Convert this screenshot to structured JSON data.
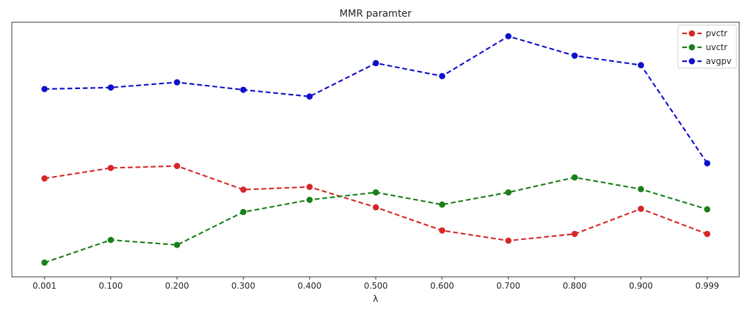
{
  "chart_data": {
    "type": "line",
    "title": "MMR paramter",
    "xlabel": "λ",
    "ylabel": "",
    "categories": [
      "0.001",
      "0.100",
      "0.200",
      "0.300",
      "0.400",
      "0.500",
      "0.600",
      "0.700",
      "0.800",
      "0.900",
      "0.999"
    ],
    "ylim": [
      0,
      100
    ],
    "show_y_ticks": false,
    "legend": {
      "placement": "top-right"
    },
    "series": [
      {
        "name": "pvctr",
        "color": "#d62728",
        "line_style": "dashed",
        "marker": "circle",
        "values": [
          38.4,
          42.6,
          43.4,
          33.9,
          35.0,
          26.8,
          17.5,
          13.4,
          16.1,
          26.2,
          16.1
        ]
      },
      {
        "name": "uvctr",
        "color": "#1a7f1a",
        "line_style": "dashed",
        "marker": "circle",
        "values": [
          4.6,
          13.7,
          11.7,
          24.9,
          29.8,
          32.8,
          27.9,
          32.8,
          38.8,
          34.1,
          26.0
        ]
      },
      {
        "name": "avgpv",
        "color": "#1010cc",
        "line_style": "dashed",
        "marker": "circle",
        "values": [
          74.3,
          74.9,
          77.0,
          74.0,
          71.3,
          84.7,
          79.5,
          95.5,
          87.7,
          83.9,
          44.5
        ]
      }
    ]
  }
}
